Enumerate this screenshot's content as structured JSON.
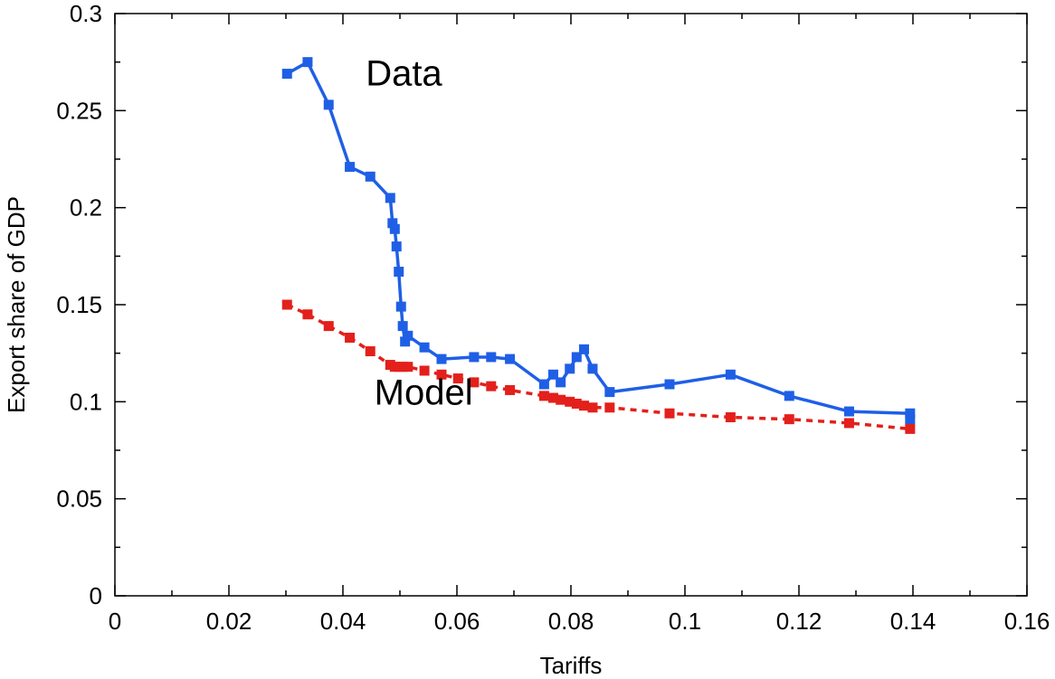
{
  "chart_data": {
    "type": "line",
    "xlabel": "Tariffs",
    "ylabel": "Export share of GDP",
    "xlim": [
      0,
      0.16
    ],
    "ylim": [
      0,
      0.3
    ],
    "x_ticks": [
      "0",
      "0.02",
      "0.04",
      "0.06",
      "0.08",
      "0.1",
      "0.12",
      "0.14",
      "0.16"
    ],
    "y_ticks": [
      "0",
      "0.05",
      "0.1",
      "0.15",
      "0.2",
      "0.25",
      "0.3"
    ],
    "grid": false,
    "annotations": [
      {
        "text": "Data",
        "x": 0.044,
        "y": 0.263
      },
      {
        "text": "Model",
        "x": 0.0455,
        "y": 0.0985
      }
    ],
    "series": [
      {
        "name": "Data",
        "color": "#1f5fe6",
        "line_style": "solid",
        "points": [
          [
            0.0302,
            0.269
          ],
          [
            0.0338,
            0.275
          ],
          [
            0.0375,
            0.253
          ],
          [
            0.0412,
            0.221
          ],
          [
            0.0448,
            0.216
          ],
          [
            0.0483,
            0.205
          ],
          [
            0.0487,
            0.192
          ],
          [
            0.0491,
            0.189
          ],
          [
            0.0494,
            0.18
          ],
          [
            0.0498,
            0.167
          ],
          [
            0.0502,
            0.149
          ],
          [
            0.0505,
            0.139
          ],
          [
            0.0509,
            0.131
          ],
          [
            0.0514,
            0.134
          ],
          [
            0.0543,
            0.128
          ],
          [
            0.0573,
            0.122
          ],
          [
            0.063,
            0.123
          ],
          [
            0.066,
            0.123
          ],
          [
            0.0693,
            0.122
          ],
          [
            0.0753,
            0.109
          ],
          [
            0.0769,
            0.114
          ],
          [
            0.0782,
            0.11
          ],
          [
            0.0798,
            0.117
          ],
          [
            0.081,
            0.123
          ],
          [
            0.0823,
            0.127
          ],
          [
            0.0838,
            0.117
          ],
          [
            0.0868,
            0.105
          ],
          [
            0.0973,
            0.109
          ],
          [
            0.108,
            0.114
          ],
          [
            0.1183,
            0.103
          ],
          [
            0.1288,
            0.095
          ],
          [
            0.1395,
            0.094
          ],
          [
            0.1395,
            0.091
          ]
        ]
      },
      {
        "name": "Model",
        "color": "#e3201b",
        "line_style": "dashed",
        "points": [
          [
            0.0302,
            0.15
          ],
          [
            0.0338,
            0.145
          ],
          [
            0.0375,
            0.139
          ],
          [
            0.0412,
            0.133
          ],
          [
            0.0448,
            0.126
          ],
          [
            0.0483,
            0.119
          ],
          [
            0.0491,
            0.118
          ],
          [
            0.0498,
            0.118
          ],
          [
            0.0505,
            0.118
          ],
          [
            0.0514,
            0.118
          ],
          [
            0.0543,
            0.116
          ],
          [
            0.0573,
            0.114
          ],
          [
            0.0602,
            0.112
          ],
          [
            0.063,
            0.11
          ],
          [
            0.066,
            0.108
          ],
          [
            0.0693,
            0.106
          ],
          [
            0.0753,
            0.103
          ],
          [
            0.0769,
            0.102
          ],
          [
            0.0782,
            0.101
          ],
          [
            0.0798,
            0.1
          ],
          [
            0.081,
            0.099
          ],
          [
            0.0823,
            0.098
          ],
          [
            0.0838,
            0.097
          ],
          [
            0.0868,
            0.097
          ],
          [
            0.0973,
            0.094
          ],
          [
            0.108,
            0.092
          ],
          [
            0.1183,
            0.091
          ],
          [
            0.1288,
            0.089
          ],
          [
            0.1395,
            0.086
          ]
        ]
      }
    ]
  }
}
